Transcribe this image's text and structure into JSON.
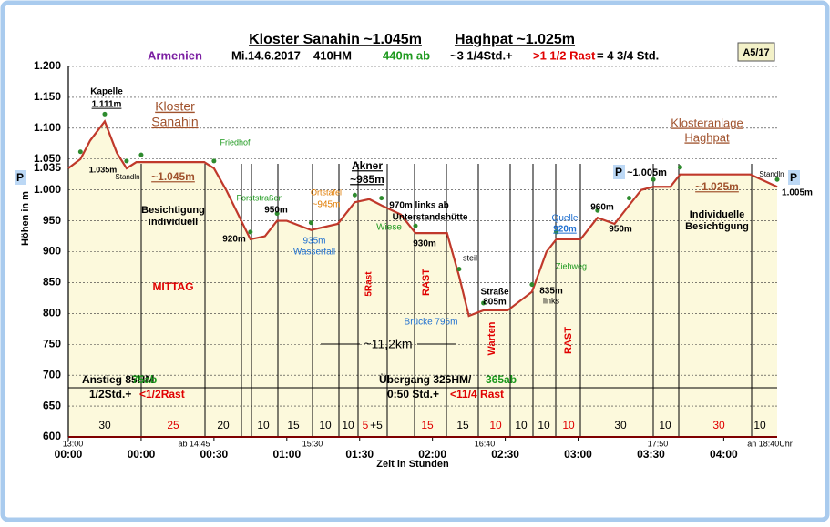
{
  "chart_data": {
    "type": "area",
    "title": [
      "Kloster Sanahin ~1.045m",
      "Haghpat ~1.025m"
    ],
    "info": [
      {
        "text": "Armenien",
        "color": "#7b1fa2"
      },
      {
        "text": "Mi.14.6.2017",
        "color": "#000000"
      },
      {
        "text": "410HM",
        "color": "#000000"
      },
      {
        "text": "440m ab",
        "color": "#1f9a1f"
      },
      {
        "text": "~3 1/4Std.+",
        "color": "#000000"
      },
      {
        "text": ">1 1/2 Rast",
        "color": "#e00000"
      },
      {
        "text": "= 4 3/4  Std.",
        "color": "#000000"
      }
    ],
    "badge": "A5/17",
    "y_label": "Höhen in m",
    "x_label": "Zeit in  Stunden",
    "line_color": "#c0392b",
    "fill_color": "#fcf9dc",
    "grid": true,
    "x": [
      0,
      5,
      9,
      15,
      20,
      24,
      28,
      30,
      56,
      60,
      65,
      75,
      81,
      86,
      90,
      100,
      111,
      118,
      124,
      129,
      137,
      143,
      156,
      161,
      165,
      171,
      181,
      191,
      197,
      201,
      211,
      218,
      225,
      231,
      236,
      241,
      248,
      252,
      281,
      292
    ],
    "values": [
      1035,
      1050,
      1080,
      1111,
      1060,
      1035,
      1045,
      1045,
      1045,
      1035,
      1000,
      920,
      925,
      950,
      950,
      935,
      945,
      980,
      985,
      975,
      960,
      930,
      930,
      860,
      796,
      805,
      805,
      835,
      900,
      920,
      920,
      955,
      945,
      975,
      1000,
      1005,
      1005,
      1025,
      1025,
      1005
    ],
    "xlim": [
      0,
      292
    ],
    "xticks": [
      {
        "value": 0,
        "label": "00:00"
      },
      {
        "value": 30,
        "label": "00:00"
      },
      {
        "value": 60,
        "label": "00:30"
      },
      {
        "value": 90,
        "label": "01:00"
      },
      {
        "value": 120,
        "label": "01:30"
      },
      {
        "value": 150,
        "label": "02:00"
      },
      {
        "value": 180,
        "label": "02:30"
      },
      {
        "value": 210,
        "label": "03:00"
      },
      {
        "value": 240,
        "label": "03:30"
      },
      {
        "value": 270,
        "label": "04:00"
      }
    ],
    "ylim": [
      600,
      1200
    ],
    "yticks": [
      600,
      650,
      700,
      750,
      800,
      850,
      900,
      950,
      {
        "value": 1000,
        "label": "1.000"
      },
      {
        "value": 1050,
        "label": "1.050"
      },
      {
        "value": 1100,
        "label": "1.100"
      },
      {
        "value": 1150,
        "label": "1.150"
      },
      {
        "value": 1200,
        "label": "1.200"
      }
    ],
    "start_height": "1.035",
    "parking": "P",
    "time_labels": [
      "13:00",
      "ab 14:45",
      "15:30",
      "16:40",
      "17:50",
      "an 18:40Uhr"
    ],
    "durations": [
      {
        "text": "30",
        "color": "#000000"
      },
      {
        "text": "25",
        "color": "#e00000"
      },
      {
        "text": "20",
        "color": "#000000"
      },
      {
        "text": "10",
        "color": "#000000"
      },
      {
        "text": "15",
        "color": "#000000"
      },
      {
        "text": "10",
        "color": "#000000"
      },
      {
        "text": "10",
        "color": "#000000"
      },
      {
        "text": "5",
        "color": "#e00000"
      },
      {
        "text": "+5",
        "color": "#000000"
      },
      {
        "text": "15",
        "color": "#e00000"
      },
      {
        "text": "15",
        "color": "#000000"
      },
      {
        "text": "10",
        "color": "#e00000"
      },
      {
        "text": "10",
        "color": "#000000"
      },
      {
        "text": "10",
        "color": "#000000"
      },
      {
        "text": "10",
        "color": "#e00000"
      },
      {
        "text": "30",
        "color": "#000000"
      },
      {
        "text": "10",
        "color": "#000000"
      },
      {
        "text": "30",
        "color": "#e00000"
      },
      {
        "text": "10",
        "color": "#000000"
      }
    ],
    "summary": [
      {
        "text": "Anstieg 85HM",
        "color": "#000000"
      },
      {
        "text": "75ab",
        "color": "#1f9a1f"
      },
      {
        "text": "1/2Std.+",
        "color": "#000000"
      },
      {
        "text": "<1/2Rast",
        "color": "#e00000"
      },
      {
        "text": "Übergang 325HM/",
        "color": "#000000"
      },
      {
        "text": "365ab",
        "color": "#1f9a1f"
      },
      {
        "text": "0:50  Std.+",
        "color": "#000000"
      },
      {
        "text": "<11/4 Rast",
        "color": "#e00000"
      }
    ],
    "annotations": [
      {
        "text": "Kapelle",
        "color": "#000000"
      },
      {
        "text": "1.111m",
        "color": "#000000"
      },
      {
        "text": "Kloster",
        "color": "#a0522d"
      },
      {
        "text": "Sanahin",
        "color": "#a0522d"
      },
      {
        "text": "Friedhof",
        "color": "#1f9a1f"
      },
      {
        "text": "1.035m",
        "color": "#000000"
      },
      {
        "text": "Standln",
        "color": "#000000"
      },
      {
        "text": "~1.045m",
        "color": "#a0522d"
      },
      {
        "text": "Besichtigung",
        "color": "#000000"
      },
      {
        "text": "individuell",
        "color": "#000000"
      },
      {
        "text": "MITTAG",
        "color": "#e00000"
      },
      {
        "text": "Forststraßen",
        "color": "#1f9a1f"
      },
      {
        "text": "950m",
        "color": "#000000"
      },
      {
        "text": "920m",
        "color": "#000000"
      },
      {
        "text": "Ortstafel",
        "color": "#e07b00"
      },
      {
        "text": "~945m",
        "color": "#e07b00"
      },
      {
        "text": "935m",
        "color": "#1e6fd0"
      },
      {
        "text": "Wasserfall",
        "color": "#1e6fd0"
      },
      {
        "text": "Akner",
        "color": "#000000"
      },
      {
        "text": "~985m",
        "color": "#000000"
      },
      {
        "text": "970m links ab",
        "color": "#000000"
      },
      {
        "text": "Unterstandshütte",
        "color": "#000000"
      },
      {
        "text": "Wiese",
        "color": "#1f9a1f"
      },
      {
        "text": "930m",
        "color": "#000000"
      },
      {
        "text": "5Rast",
        "color": "#e00000"
      },
      {
        "text": "RAST",
        "color": "#e00000"
      },
      {
        "text": "steil",
        "color": "#000000"
      },
      {
        "text": "Straße",
        "color": "#000000"
      },
      {
        "text": "805m",
        "color": "#000000"
      },
      {
        "text": "Brücke 796m",
        "color": "#1e6fd0"
      },
      {
        "text": "Warten",
        "color": "#e00000"
      },
      {
        "text": "835m",
        "color": "#000000"
      },
      {
        "text": "links",
        "color": "#000000"
      },
      {
        "text": "Quelle",
        "color": "#1e6fd0"
      },
      {
        "text": "920m",
        "color": "#1e6fd0"
      },
      {
        "text": "Ziehweg",
        "color": "#1f9a1f"
      },
      {
        "text": "RAST",
        "color": "#e00000"
      },
      {
        "text": "960m",
        "color": "#000000"
      },
      {
        "text": "950m",
        "color": "#000000"
      },
      {
        "text": "~1.005m",
        "color": "#000000"
      },
      {
        "text": "Klosteranlage",
        "color": "#a0522d"
      },
      {
        "text": "Haghpat",
        "color": "#a0522d"
      },
      {
        "text": "~1.025m",
        "color": "#a0522d"
      },
      {
        "text": "Individuelle",
        "color": "#000000"
      },
      {
        "text": "Besichtigung",
        "color": "#000000"
      },
      {
        "text": "Standln",
        "color": "#000000"
      },
      {
        "text": "1.005m",
        "color": "#000000"
      },
      {
        "text": "~11,2km",
        "color": "#000000"
      }
    ]
  }
}
